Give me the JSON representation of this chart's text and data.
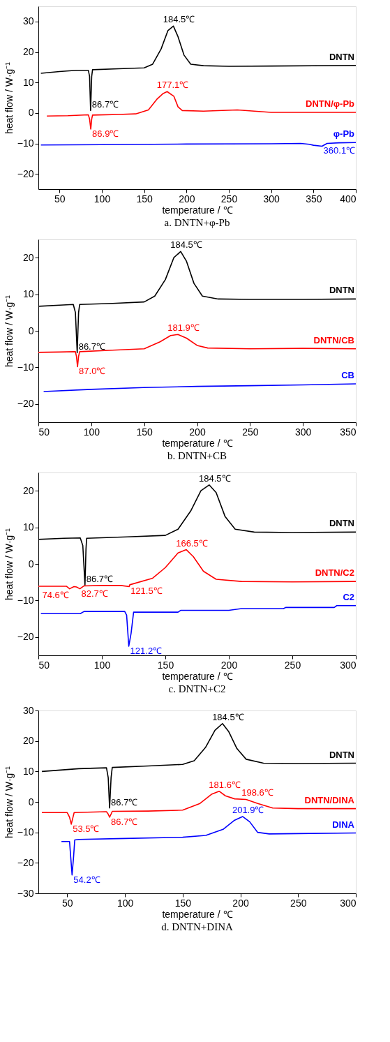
{
  "chart_data": [
    {
      "type": "line",
      "title": "a.  DNTN+φ-Pb",
      "xlabel": "temperature / ℃",
      "ylabel": "heat flow / W·g⁻¹",
      "xlim": [
        25,
        400
      ],
      "xticks": [
        50,
        100,
        150,
        200,
        250,
        300,
        350,
        400
      ],
      "ylim": [
        -25,
        35
      ],
      "yticks": [
        -20,
        -10,
        0,
        10,
        20,
        30
      ],
      "grid": false,
      "series": [
        {
          "name": "DNTN",
          "color": "#000000",
          "x": [
            28,
            50,
            70,
            84,
            85.5,
            86.7,
            88,
            89,
            120,
            150,
            160,
            170,
            178,
            184.5,
            190,
            197,
            205,
            220,
            250,
            300,
            400
          ],
          "values": [
            13,
            13.6,
            14,
            14,
            12,
            0.8,
            12,
            14.2,
            14.5,
            14.8,
            16,
            21,
            27,
            28.5,
            25,
            19,
            16,
            15.5,
            15.3,
            15.4,
            15.6
          ]
        },
        {
          "name": "DNTN/φ-Pb",
          "color": "#ff0000",
          "x": [
            35,
            60,
            84,
            85.5,
            86.9,
            88,
            89,
            120,
            140,
            155,
            165,
            172,
            177.1,
            185,
            190,
            195,
            220,
            260,
            300,
            350,
            400
          ],
          "values": [
            -1,
            -0.9,
            -0.6,
            -2,
            -5.3,
            -2,
            -0.7,
            -0.5,
            -0.3,
            1,
            4.5,
            6.3,
            7,
            5.5,
            2,
            0.8,
            0.6,
            1,
            0.2,
            0.2,
            0.2
          ]
        },
        {
          "name": "φ-Pb",
          "color": "#0000ff",
          "x": [
            28,
            100,
            200,
            300,
            335,
            345,
            350,
            360.1,
            366,
            380,
            400
          ],
          "values": [
            -10.5,
            -10.4,
            -10.2,
            -10.1,
            -10,
            -10.3,
            -10.6,
            -10.9,
            -10,
            -9.8,
            -9.7
          ]
        }
      ],
      "annotations": [
        {
          "text": "184.5℃",
          "x": 184.5,
          "y": 28.5
        },
        {
          "text": "86.7℃",
          "x": 86.7,
          "y": 0.8
        },
        {
          "text": "177.1℃",
          "x": 177.1,
          "y": 7
        },
        {
          "text": "86.9℃",
          "x": 86.9,
          "y": -5.3
        },
        {
          "text": "360.1℃",
          "x": 360.1,
          "y": -10.9
        }
      ]
    },
    {
      "type": "line",
      "title": "b.  DNTN+CB",
      "xlabel": "temperature / ℃",
      "ylabel": "heat flow / W·g⁻¹",
      "xlim": [
        50,
        350
      ],
      "xticks": [
        50,
        100,
        150,
        200,
        250,
        300,
        350
      ],
      "ylim": [
        -25,
        25
      ],
      "yticks": [
        -20,
        -10,
        0,
        10,
        20
      ],
      "grid": false,
      "series": [
        {
          "name": "DNTN",
          "color": "#000000",
          "x": [
            50,
            70,
            83,
            85,
            86.7,
            88,
            89,
            120,
            150,
            160,
            170,
            178,
            184.5,
            190,
            197,
            205,
            220,
            250,
            300,
            350
          ],
          "values": [
            6.7,
            7,
            7.2,
            5,
            -6,
            5,
            7.2,
            7.5,
            7.9,
            9.5,
            14,
            20,
            21.7,
            19,
            13,
            9.5,
            8.7,
            8.6,
            8.6,
            8.7
          ]
        },
        {
          "name": "DNTN/CB",
          "color": "#ff0000",
          "x": [
            50,
            70,
            85,
            86,
            87,
            88,
            89,
            120,
            150,
            165,
            175,
            181.9,
            190,
            200,
            210,
            250,
            300,
            350
          ],
          "values": [
            -5.9,
            -5.8,
            -5.7,
            -7,
            -9.8,
            -7,
            -5.7,
            -5.3,
            -4.9,
            -3,
            -1.3,
            -1,
            -2,
            -4,
            -4.7,
            -4.9,
            -4.8,
            -4.9
          ]
        },
        {
          "name": "CB",
          "color": "#0000ff",
          "x": [
            55,
            100,
            150,
            200,
            250,
            300,
            350
          ],
          "values": [
            -16.6,
            -16,
            -15.5,
            -15.2,
            -15,
            -14.8,
            -14.5
          ]
        }
      ],
      "annotations": [
        {
          "text": "184.5℃",
          "x": 184.5,
          "y": 21.7
        },
        {
          "text": "86.7℃",
          "x": 86.7,
          "y": -6
        },
        {
          "text": "181.9℃",
          "x": 181.9,
          "y": -1
        },
        {
          "text": "87.0℃",
          "x": 87,
          "y": -9.8
        }
      ]
    },
    {
      "type": "line",
      "title": "c.  DNTN+C2",
      "xlabel": "temperature / ℃",
      "ylabel": "heat flow / W·g⁻¹",
      "xlim": [
        50,
        300
      ],
      "xticks": [
        50,
        100,
        150,
        200,
        250,
        300
      ],
      "ylim": [
        -25,
        25
      ],
      "yticks": [
        -20,
        -10,
        0,
        10,
        20
      ],
      "grid": false,
      "series": [
        {
          "name": "DNTN",
          "color": "#000000",
          "x": [
            50,
            70,
            83,
            85,
            86.7,
            87.5,
            88,
            120,
            150,
            160,
            170,
            178,
            184.5,
            190,
            197,
            205,
            220,
            250,
            300
          ],
          "values": [
            6.7,
            7,
            7.1,
            5,
            -5.8,
            4,
            7,
            7.4,
            7.8,
            9.5,
            14.5,
            20,
            21.6,
            19.5,
            13,
            9.5,
            8.7,
            8.6,
            8.7
          ]
        },
        {
          "name": "DNTN/C2",
          "color": "#ff0000",
          "x": [
            50,
            72,
            74.6,
            78,
            80,
            82.7,
            86,
            100,
            115,
            121.5,
            122,
            140,
            150,
            160,
            166.5,
            172,
            180,
            190,
            210,
            250,
            300
          ],
          "values": [
            -6.1,
            -6.1,
            -6.8,
            -6.2,
            -6.3,
            -6.8,
            -6,
            -5.9,
            -5.9,
            -6.2,
            -5.7,
            -3.9,
            -1,
            3,
            3.9,
            2,
            -2,
            -4.2,
            -4.8,
            -4.9,
            -4.8
          ]
        },
        {
          "name": "C2",
          "color": "#0000ff",
          "x": [
            52,
            83,
            86,
            118,
            119.5,
            121.2,
            123,
            125,
            160,
            162,
            200,
            210,
            243,
            245,
            283,
            285,
            300
          ],
          "values": [
            -13.6,
            -13.6,
            -13,
            -13,
            -14,
            -22.5,
            -19,
            -13.2,
            -13.2,
            -12.7,
            -12.7,
            -12.2,
            -12.2,
            -11.9,
            -11.9,
            -11.4,
            -11.4
          ]
        }
      ],
      "annotations": [
        {
          "text": "184.5℃",
          "x": 184.5,
          "y": 21.6
        },
        {
          "text": "86.7℃",
          "x": 86.7,
          "y": -5.8
        },
        {
          "text": "166.5℃",
          "x": 166.5,
          "y": 3.9
        },
        {
          "text": "74.6℃",
          "x": 74.6,
          "y": -6.8
        },
        {
          "text": "82.7℃",
          "x": 82.7,
          "y": -6.8
        },
        {
          "text": "121.5℃",
          "x": 121.5,
          "y": -6.2
        },
        {
          "text": "121.2℃",
          "x": 121.2,
          "y": -22.5
        }
      ]
    },
    {
      "type": "line",
      "title": "d.  DNTN+DINA",
      "xlabel": "temperature / ℃",
      "ylabel": "heat flow / W·g⁻¹",
      "xlim": [
        25,
        300
      ],
      "xticks": [
        50,
        100,
        150,
        200,
        250,
        300
      ],
      "ylim": [
        -30,
        30
      ],
      "yticks": [
        -30,
        -20,
        -10,
        0,
        10,
        20,
        30
      ],
      "grid": false,
      "series": [
        {
          "name": "DNTN",
          "color": "#000000",
          "x": [
            28,
            60,
            84,
            85.5,
            86.7,
            88,
            89,
            120,
            150,
            160,
            170,
            178,
            184.5,
            190,
            197,
            205,
            220,
            250,
            300
          ],
          "values": [
            10,
            10.9,
            11.2,
            8,
            -2,
            8,
            11.3,
            11.8,
            12.3,
            13.5,
            18,
            23.5,
            25.7,
            23,
            17.5,
            14,
            12.7,
            12.6,
            12.7
          ]
        },
        {
          "name": "DNTN/DINA",
          "color": "#ff0000",
          "x": [
            28,
            50,
            52,
            53.5,
            55,
            56,
            84,
            85.5,
            86.7,
            88,
            89,
            120,
            150,
            165,
            175,
            181.6,
            187,
            195,
            205,
            215,
            228,
            250,
            300
          ],
          "values": [
            -3.5,
            -3.5,
            -5,
            -7.3,
            -5,
            -3.5,
            -3.2,
            -4,
            -5,
            -4,
            -3.1,
            -3,
            -2.7,
            -0.5,
            2.5,
            3.5,
            2,
            1,
            0.8,
            -0.5,
            -2,
            -2.2,
            -2.2
          ]
        },
        {
          "name": "DINA",
          "color": "#0000ff",
          "x": [
            45,
            52,
            53,
            54.2,
            55.5,
            56.5,
            60,
            100,
            150,
            170,
            185,
            195,
            201.9,
            208,
            215,
            225,
            250,
            300
          ],
          "values": [
            -13,
            -13,
            -18,
            -24,
            -18,
            -12.5,
            -12.3,
            -12,
            -11.6,
            -11,
            -9,
            -6,
            -4.8,
            -6.5,
            -10,
            -10.5,
            -10.4,
            -10.2
          ]
        }
      ],
      "annotations": [
        {
          "text": "184.5℃",
          "x": 184.5,
          "y": 25.7
        },
        {
          "text": "86.7℃",
          "x": 86.7,
          "y": -2
        },
        {
          "text": "181.6℃",
          "x": 181.6,
          "y": 3.5
        },
        {
          "text": "198.6℃",
          "x": 198.6,
          "y": 1
        },
        {
          "text": "53.5℃",
          "x": 53.5,
          "y": -7.3
        },
        {
          "text": "86.7℃",
          "x": 86.7,
          "y": -5
        },
        {
          "text": "201.9℃",
          "x": 201.9,
          "y": -4.8
        },
        {
          "text": "54.2℃",
          "x": 54.2,
          "y": -24
        }
      ]
    }
  ]
}
